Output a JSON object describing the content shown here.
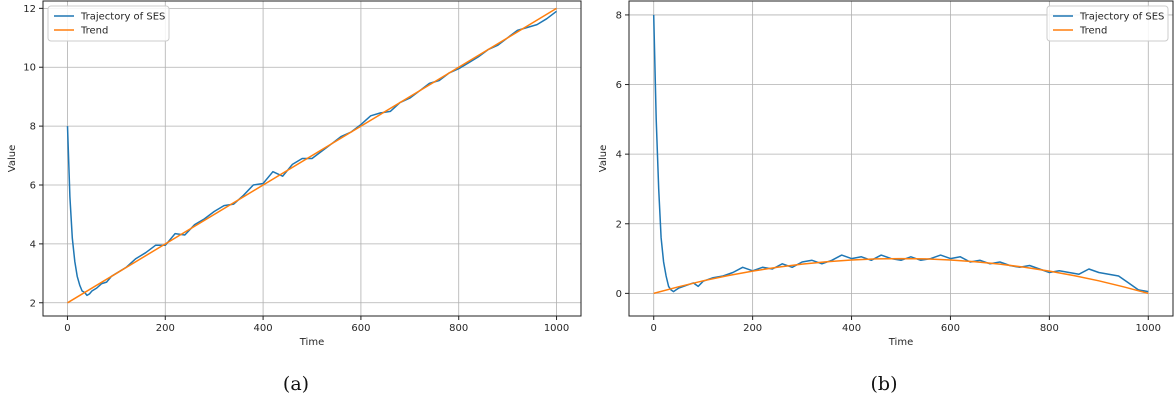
{
  "chart_data": [
    {
      "type": "line",
      "caption": "(a)",
      "xlabel": "Time",
      "ylabel": "Value",
      "xlim": [
        -50,
        1050
      ],
      "ylim": [
        1.55,
        12.25
      ],
      "xticks": [
        0,
        200,
        400,
        600,
        800,
        1000
      ],
      "yticks": [
        2,
        4,
        6,
        8,
        10,
        12
      ],
      "grid": true,
      "legend_position": "upper-left",
      "series": [
        {
          "name": "Trajectory of SES",
          "color": "#1f77b4",
          "x": [
            0,
            5,
            10,
            15,
            20,
            25,
            30,
            35,
            40,
            45,
            50,
            60,
            70,
            80,
            90,
            100,
            120,
            140,
            160,
            180,
            200,
            220,
            240,
            260,
            280,
            300,
            320,
            340,
            360,
            380,
            400,
            420,
            440,
            460,
            480,
            500,
            520,
            540,
            560,
            580,
            600,
            620,
            640,
            660,
            680,
            700,
            720,
            740,
            760,
            780,
            800,
            820,
            840,
            860,
            880,
            900,
            920,
            940,
            960,
            980,
            1000
          ],
          "values": [
            8.0,
            5.6,
            4.2,
            3.4,
            2.9,
            2.6,
            2.4,
            2.35,
            2.25,
            2.3,
            2.4,
            2.5,
            2.65,
            2.7,
            2.9,
            3.0,
            3.2,
            3.5,
            3.7,
            3.95,
            3.95,
            4.35,
            4.3,
            4.65,
            4.85,
            5.1,
            5.3,
            5.35,
            5.65,
            6.0,
            6.05,
            6.45,
            6.3,
            6.7,
            6.9,
            6.9,
            7.15,
            7.4,
            7.65,
            7.8,
            8.05,
            8.35,
            8.45,
            8.5,
            8.8,
            8.95,
            9.2,
            9.45,
            9.55,
            9.8,
            9.95,
            10.15,
            10.35,
            10.6,
            10.75,
            11.0,
            11.25,
            11.35,
            11.45,
            11.65,
            11.9
          ]
        },
        {
          "name": "Trend",
          "color": "#ff7f0e",
          "x": [
            0,
            1000
          ],
          "values": [
            2.0,
            12.0
          ]
        }
      ]
    },
    {
      "type": "line",
      "caption": "(b)",
      "xlabel": "Time",
      "ylabel": "Value",
      "xlim": [
        -50,
        1050
      ],
      "ylim": [
        -0.65,
        8.4
      ],
      "xticks": [
        0,
        200,
        400,
        600,
        800,
        1000
      ],
      "yticks": [
        0,
        2,
        4,
        6,
        8
      ],
      "grid": true,
      "legend_position": "upper-right",
      "series": [
        {
          "name": "Trajectory of SES",
          "color": "#1f77b4",
          "x": [
            0,
            5,
            10,
            15,
            20,
            25,
            30,
            35,
            40,
            45,
            50,
            60,
            70,
            80,
            90,
            100,
            120,
            140,
            160,
            180,
            200,
            220,
            240,
            260,
            280,
            300,
            320,
            340,
            360,
            380,
            400,
            420,
            440,
            460,
            480,
            500,
            520,
            540,
            560,
            580,
            600,
            620,
            640,
            660,
            680,
            700,
            720,
            740,
            760,
            780,
            800,
            820,
            840,
            860,
            880,
            900,
            920,
            940,
            960,
            980,
            1000
          ],
          "values": [
            8.0,
            5.0,
            3.0,
            1.6,
            0.9,
            0.5,
            0.2,
            0.1,
            0.05,
            0.1,
            0.15,
            0.2,
            0.25,
            0.3,
            0.2,
            0.35,
            0.45,
            0.5,
            0.6,
            0.75,
            0.65,
            0.75,
            0.7,
            0.85,
            0.75,
            0.9,
            0.95,
            0.85,
            0.95,
            1.1,
            1.0,
            1.05,
            0.95,
            1.1,
            1.0,
            0.95,
            1.05,
            0.95,
            1.0,
            1.1,
            1.0,
            1.05,
            0.9,
            0.95,
            0.85,
            0.9,
            0.8,
            0.75,
            0.8,
            0.7,
            0.6,
            0.65,
            0.6,
            0.55,
            0.7,
            0.6,
            0.55,
            0.5,
            0.3,
            0.1,
            0.05
          ]
        },
        {
          "name": "Trend",
          "color": "#ff7f0e",
          "x": [
            0,
            50,
            100,
            150,
            200,
            250,
            300,
            350,
            400,
            450,
            500,
            550,
            600,
            650,
            700,
            750,
            800,
            850,
            900,
            950,
            1000
          ],
          "values": [
            0.0,
            0.19,
            0.36,
            0.51,
            0.64,
            0.75,
            0.84,
            0.91,
            0.96,
            0.99,
            1.0,
            0.99,
            0.96,
            0.91,
            0.84,
            0.75,
            0.64,
            0.51,
            0.36,
            0.19,
            0.0
          ]
        }
      ]
    }
  ]
}
